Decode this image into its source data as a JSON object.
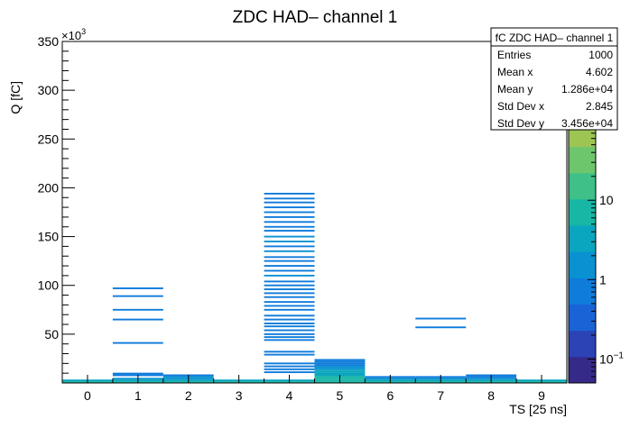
{
  "chart_data": {
    "type": "heatmap",
    "title": "ZDC HAD– channel 1",
    "xlabel": "TS [25 ns]",
    "ylabel": "Q [fC]",
    "y_multiplier_label": "×10",
    "y_multiplier_exp": "3",
    "xlim": [
      -0.5,
      9.5
    ],
    "ylim": [
      0,
      350000
    ],
    "x_ticks": [
      "0",
      "1",
      "2",
      "3",
      "4",
      "5",
      "6",
      "7",
      "8",
      "9"
    ],
    "y_ticks": [
      {
        "v": 50000,
        "label": "50"
      },
      {
        "v": 100000,
        "label": "100"
      },
      {
        "v": 150000,
        "label": "150"
      },
      {
        "v": 200000,
        "label": "200"
      },
      {
        "v": 250000,
        "label": "250"
      },
      {
        "v": 300000,
        "label": "300"
      },
      {
        "v": 350000,
        "label": "350"
      }
    ],
    "bin_height": 1750,
    "z_scale": "log",
    "zlim": [
      0.05,
      1000
    ],
    "z_ticks": [
      {
        "v": 0.1,
        "base": "10",
        "exp": "−1"
      },
      {
        "v": 1,
        "label": "1"
      },
      {
        "v": 10,
        "base": "10",
        "exp": ""
      }
    ],
    "palette": [
      "#352a87",
      "#2c43b6",
      "#1a63d7",
      "#0f7bdb",
      "#0991d1",
      "#0aa5be",
      "#17b6a5",
      "#3ec088",
      "#6ec66c",
      "#9cc553",
      "#c3bf43",
      "#e5b636",
      "#fbc82c"
    ],
    "cells": [
      {
        "x": 0,
        "y": 875,
        "c": 10
      },
      {
        "x": 0,
        "y": 2625,
        "c": 3
      },
      {
        "x": 1,
        "y": 875,
        "c": 10
      },
      {
        "x": 1,
        "y": 2625,
        "c": 4
      },
      {
        "x": 1,
        "y": 4375,
        "c": 2
      },
      {
        "x": 1,
        "y": 7875,
        "c": 1
      },
      {
        "x": 1,
        "y": 9625,
        "c": 1
      },
      {
        "x": 1,
        "y": 41000,
        "c": 1
      },
      {
        "x": 1,
        "y": 65000,
        "c": 1
      },
      {
        "x": 1,
        "y": 75000,
        "c": 1
      },
      {
        "x": 1,
        "y": 89000,
        "c": 1
      },
      {
        "x": 1,
        "y": 97000,
        "c": 1
      },
      {
        "x": 2,
        "y": 875,
        "c": 10
      },
      {
        "x": 2,
        "y": 2625,
        "c": 4
      },
      {
        "x": 2,
        "y": 4375,
        "c": 2
      },
      {
        "x": 2,
        "y": 6125,
        "c": 2
      },
      {
        "x": 2,
        "y": 7875,
        "c": 1
      },
      {
        "x": 3,
        "y": 875,
        "c": 10
      },
      {
        "x": 3,
        "y": 2625,
        "c": 3
      },
      {
        "x": 4,
        "y": 875,
        "c": 8
      },
      {
        "x": 4,
        "y": 2625,
        "c": 3
      },
      {
        "x": 4,
        "y": 11000,
        "c": 1
      },
      {
        "x": 4,
        "y": 14000,
        "c": 1
      },
      {
        "x": 4,
        "y": 17000,
        "c": 1
      },
      {
        "x": 4,
        "y": 20000,
        "c": 1
      },
      {
        "x": 4,
        "y": 29000,
        "c": 1
      },
      {
        "x": 4,
        "y": 32000,
        "c": 1
      },
      {
        "x": 4,
        "y": 44000,
        "c": 1
      },
      {
        "x": 4,
        "y": 47000,
        "c": 1
      },
      {
        "x": 4,
        "y": 50000,
        "c": 1
      },
      {
        "x": 4,
        "y": 54000,
        "c": 1
      },
      {
        "x": 4,
        "y": 58000,
        "c": 1
      },
      {
        "x": 4,
        "y": 61000,
        "c": 1
      },
      {
        "x": 4,
        "y": 65000,
        "c": 1
      },
      {
        "x": 4,
        "y": 69000,
        "c": 1
      },
      {
        "x": 4,
        "y": 75000,
        "c": 1
      },
      {
        "x": 4,
        "y": 79000,
        "c": 1
      },
      {
        "x": 4,
        "y": 83000,
        "c": 1
      },
      {
        "x": 4,
        "y": 88000,
        "c": 1
      },
      {
        "x": 4,
        "y": 92000,
        "c": 1
      },
      {
        "x": 4,
        "y": 96000,
        "c": 1
      },
      {
        "x": 4,
        "y": 100000,
        "c": 1
      },
      {
        "x": 4,
        "y": 104000,
        "c": 1
      },
      {
        "x": 4,
        "y": 110000,
        "c": 2
      },
      {
        "x": 4,
        "y": 115000,
        "c": 1
      },
      {
        "x": 4,
        "y": 120000,
        "c": 1
      },
      {
        "x": 4,
        "y": 125000,
        "c": 1
      },
      {
        "x": 4,
        "y": 129000,
        "c": 1
      },
      {
        "x": 4,
        "y": 135000,
        "c": 2
      },
      {
        "x": 4,
        "y": 140000,
        "c": 1
      },
      {
        "x": 4,
        "y": 145000,
        "c": 2
      },
      {
        "x": 4,
        "y": 150000,
        "c": 2
      },
      {
        "x": 4,
        "y": 156000,
        "c": 1
      },
      {
        "x": 4,
        "y": 160000,
        "c": 1
      },
      {
        "x": 4,
        "y": 165000,
        "c": 1
      },
      {
        "x": 4,
        "y": 170000,
        "c": 1
      },
      {
        "x": 4,
        "y": 175000,
        "c": 1
      },
      {
        "x": 4,
        "y": 180000,
        "c": 1
      },
      {
        "x": 4,
        "y": 185000,
        "c": 1
      },
      {
        "x": 4,
        "y": 189000,
        "c": 1
      },
      {
        "x": 4,
        "y": 194000,
        "c": 1
      },
      {
        "x": 5,
        "y": 875,
        "c": 8
      },
      {
        "x": 5,
        "y": 2625,
        "c": 6
      },
      {
        "x": 5,
        "y": 4375,
        "c": 5
      },
      {
        "x": 5,
        "y": 6125,
        "c": 5
      },
      {
        "x": 5,
        "y": 7875,
        "c": 4
      },
      {
        "x": 5,
        "y": 9625,
        "c": 3
      },
      {
        "x": 5,
        "y": 11375,
        "c": 3
      },
      {
        "x": 5,
        "y": 13125,
        "c": 3
      },
      {
        "x": 5,
        "y": 14875,
        "c": 2
      },
      {
        "x": 5,
        "y": 16625,
        "c": 2
      },
      {
        "x": 5,
        "y": 18375,
        "c": 1
      },
      {
        "x": 5,
        "y": 20125,
        "c": 1
      },
      {
        "x": 5,
        "y": 21875,
        "c": 1
      },
      {
        "x": 5,
        "y": 23625,
        "c": 1
      },
      {
        "x": 6,
        "y": 875,
        "c": 10
      },
      {
        "x": 6,
        "y": 2625,
        "c": 4
      },
      {
        "x": 6,
        "y": 4375,
        "c": 2
      },
      {
        "x": 6,
        "y": 6125,
        "c": 1
      },
      {
        "x": 7,
        "y": 875,
        "c": 10
      },
      {
        "x": 7,
        "y": 2625,
        "c": 3
      },
      {
        "x": 7,
        "y": 4375,
        "c": 2
      },
      {
        "x": 7,
        "y": 6125,
        "c": 1
      },
      {
        "x": 7,
        "y": 57000,
        "c": 1
      },
      {
        "x": 7,
        "y": 66000,
        "c": 1
      },
      {
        "x": 8,
        "y": 875,
        "c": 10
      },
      {
        "x": 8,
        "y": 2625,
        "c": 3
      },
      {
        "x": 8,
        "y": 4375,
        "c": 2
      },
      {
        "x": 8,
        "y": 6125,
        "c": 1
      },
      {
        "x": 8,
        "y": 7875,
        "c": 1
      },
      {
        "x": 9,
        "y": 875,
        "c": 10
      },
      {
        "x": 9,
        "y": 2625,
        "c": 3
      }
    ]
  },
  "stats": {
    "title": "fC ZDC HAD– channel 1",
    "rows": [
      {
        "label": "Entries",
        "value": "1000"
      },
      {
        "label": "Mean x",
        "value": "4.602"
      },
      {
        "label": "Mean y",
        "value": "1.286e+04"
      },
      {
        "label": "Std Dev x",
        "value": "2.845"
      },
      {
        "label": "Std Dev y",
        "value": "3.456e+04"
      }
    ]
  }
}
